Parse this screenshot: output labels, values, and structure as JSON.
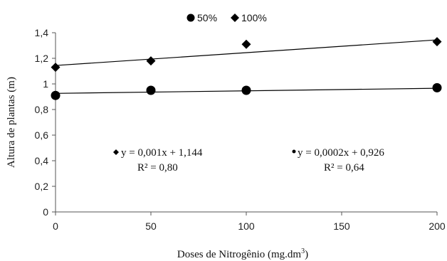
{
  "chart_data": {
    "type": "scatter",
    "xlabel": "Doses de Nitrogênio (mg.dm",
    "xlabel_sup": "3",
    "xlabel_close": ")",
    "ylabel": "Altura de plantas (m)",
    "xlim": [
      0,
      200
    ],
    "ylim": [
      0,
      1.4
    ],
    "x_ticks": [
      0,
      50,
      100,
      150,
      200
    ],
    "x_tick_labels": [
      "0",
      "50",
      "100",
      "150",
      "200"
    ],
    "y_ticks": [
      0,
      0.2,
      0.4,
      0.6,
      0.8,
      1.0,
      1.2,
      1.4
    ],
    "y_tick_labels": [
      "0",
      "0,2",
      "0,4",
      "0,6",
      "0,8",
      "1",
      "1,2",
      "1,4"
    ],
    "grid": false,
    "legend_position": "top-center",
    "series": [
      {
        "name": "50%",
        "marker": "circle",
        "x": [
          0,
          50,
          100,
          200
        ],
        "y": [
          0.91,
          0.95,
          0.95,
          0.97
        ],
        "trend": {
          "slope": 0.0002,
          "intercept": 0.926
        },
        "equation": "y = 0,0002x + 0,926",
        "r2": "R² = 0,64"
      },
      {
        "name": "100%",
        "marker": "diamond",
        "x": [
          0,
          50,
          100,
          200
        ],
        "y": [
          1.13,
          1.18,
          1.31,
          1.33
        ],
        "trend": {
          "slope": 0.001,
          "intercept": 1.144
        },
        "equation": "y = 0,001x + 1,144",
        "r2": "R² = 0,80"
      }
    ]
  }
}
